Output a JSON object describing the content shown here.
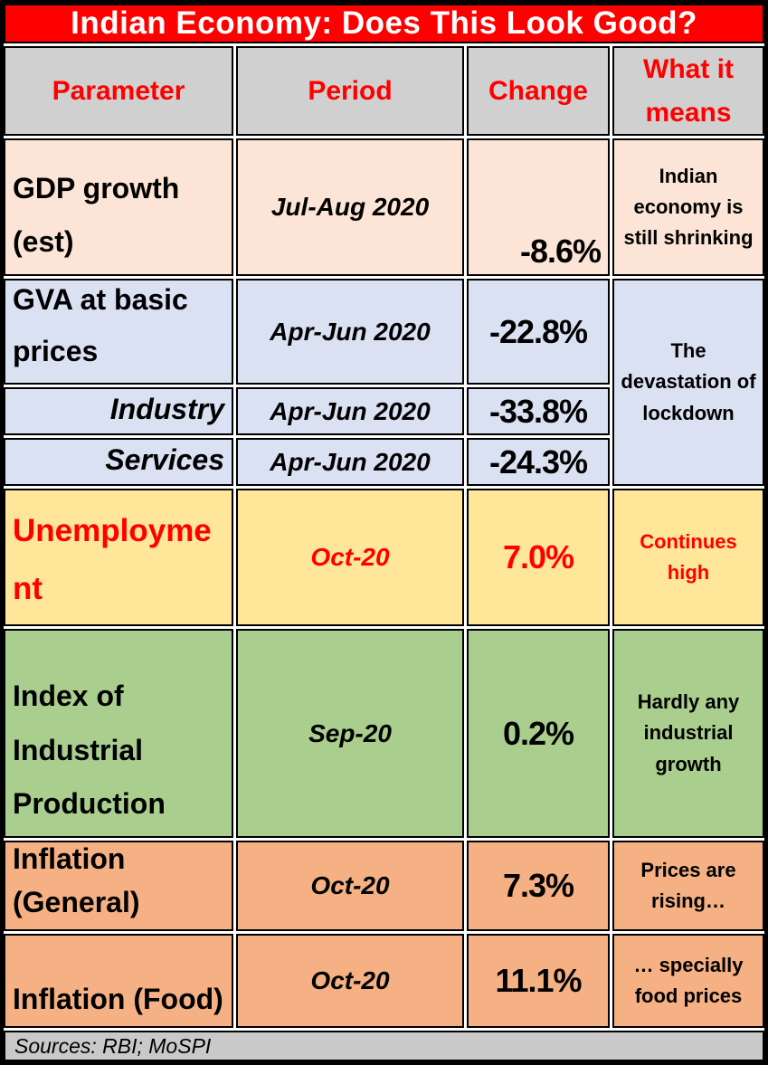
{
  "title": "Indian Economy: Does This Look Good?",
  "header": {
    "parameter": "Parameter",
    "period": "Period",
    "change": "Change",
    "means": "What it means"
  },
  "rows": [
    {
      "parameter": "GDP growth (est)",
      "period": "Jul-Aug 2020",
      "change": "-8.6%",
      "means": "Indian economy is still shrinking"
    },
    {
      "parameter": "GVA at basic prices",
      "period": "Apr-Jun 2020",
      "change": "-22.8%",
      "means": "The devastation of lockdown"
    },
    {
      "parameter": "Industry",
      "period": "Apr-Jun 2020",
      "change": "-33.8%",
      "means": "The devastation of lockdown"
    },
    {
      "parameter": "Services",
      "period": "Apr-Jun 2020",
      "change": "-24.3%",
      "means": "The devastation of lockdown"
    },
    {
      "parameter": "Unemployment",
      "period": "Oct-20",
      "change": "7.0%",
      "means": "Continues high"
    },
    {
      "parameter": "Index of Industrial Production",
      "period": "Sep-20",
      "change": "0.2%",
      "means": "Hardly any industrial growth"
    },
    {
      "parameter": "Inflation (General)",
      "period": "Oct-20",
      "change": "7.3%",
      "means": "Prices are rising…"
    },
    {
      "parameter": "Inflation (Food)",
      "period": "Oct-20",
      "change": "11.1%",
      "means": "… specially food prices"
    }
  ],
  "footer": "Sources: RBI; MoSPI",
  "colors": {
    "title_bg": "#FF0000",
    "title_text": "#FFFFFF",
    "header_bg": "#D0D0D0",
    "header_text": "#FF0000",
    "row_gdp_bg": "#FCE5D6",
    "row_gva_bg": "#DAE1F3",
    "row_unemployment_bg": "#FFE699",
    "row_unemployment_text": "#FF0000",
    "row_iip_bg": "#A9CE8E",
    "row_inflation_bg": "#F5B183",
    "footer_bg": "#C9C9C9",
    "body_text": "#000000",
    "border": "#000000"
  },
  "chart_data": {
    "type": "table",
    "title": "Indian Economy: Does This Look Good?",
    "columns": [
      "Parameter",
      "Period",
      "Change",
      "What it means"
    ],
    "rows": [
      [
        "GDP growth (est)",
        "Jul-Aug 2020",
        "-8.6%",
        "Indian economy is still shrinking"
      ],
      [
        "GVA at basic prices",
        "Apr-Jun 2020",
        "-22.8%",
        "The devastation of lockdown"
      ],
      [
        "Industry",
        "Apr-Jun 2020",
        "-33.8%",
        "The devastation of lockdown"
      ],
      [
        "Services",
        "Apr-Jun 2020",
        "-24.3%",
        "The devastation of lockdown"
      ],
      [
        "Unemployment",
        "Oct-20",
        "7.0%",
        "Continues high"
      ],
      [
        "Index of Industrial Production",
        "Sep-20",
        "0.2%",
        "Hardly any industrial growth"
      ],
      [
        "Inflation (General)",
        "Oct-20",
        "7.3%",
        "Prices are rising…"
      ],
      [
        "Inflation (Food)",
        "Oct-20",
        "11.1%",
        "… specially food prices"
      ]
    ],
    "change_values_percent": [
      -8.6,
      -22.8,
      -33.8,
      -24.3,
      7.0,
      0.2,
      7.3,
      11.1
    ],
    "source_note": "Sources: RBI; MoSPI",
    "merged_cells": [
      {
        "column": "What it means",
        "rows": [
          1,
          2,
          3
        ],
        "value": "The devastation of lockdown"
      }
    ]
  }
}
